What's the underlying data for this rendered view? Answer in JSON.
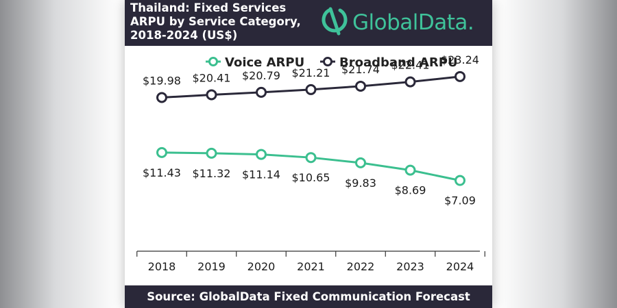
{
  "header": {
    "title_lines": [
      "Thailand: Fixed Services",
      "ARPU by Service Category,",
      "2018-2024 (US$)"
    ],
    "brand": "GlobalData."
  },
  "footer": {
    "source": "Source:  GlobalData Fixed Communication Forecast"
  },
  "chart_data": {
    "type": "line",
    "title": "Thailand: Fixed Services ARPU by Service Category, 2018-2024 (US$)",
    "x": [
      "2018",
      "2019",
      "2020",
      "2021",
      "2022",
      "2023",
      "2024"
    ],
    "series": [
      {
        "name": "Voice ARPU",
        "color": "#3bbf8f",
        "values": [
          11.43,
          11.32,
          11.14,
          10.65,
          9.83,
          8.69,
          7.09
        ],
        "labels": [
          "$11.43",
          "$11.32",
          "$11.14",
          "$10.65",
          "$9.83",
          "$8.69",
          "$7.09"
        ],
        "label_position": "below"
      },
      {
        "name": "Broadband ARPU",
        "color": "#2a2839",
        "values": [
          19.98,
          20.41,
          20.79,
          21.21,
          21.74,
          22.41,
          23.24
        ],
        "labels": [
          "$19.98",
          "$20.41",
          "$20.79",
          "$21.21",
          "$21.74",
          "$22.41",
          "$23.24"
        ],
        "label_position": "above"
      }
    ],
    "legend_position": "top",
    "grid": false,
    "x_axis": "ticks between categories"
  }
}
